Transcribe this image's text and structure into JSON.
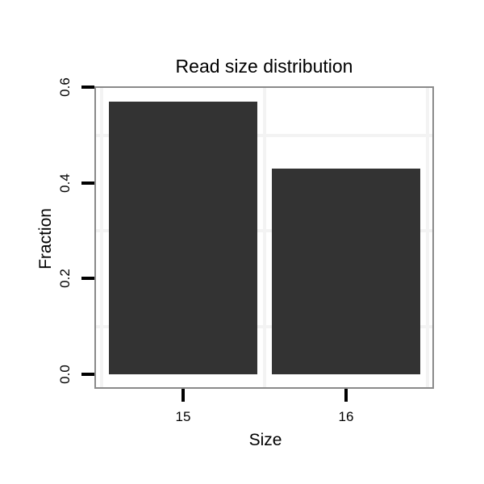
{
  "chart_data": {
    "type": "bar",
    "title": "Read size distribution",
    "xlabel": "Size",
    "ylabel": "Fraction",
    "categories": [
      "15",
      "16"
    ],
    "values": [
      0.57,
      0.43
    ],
    "ylim": [
      0,
      0.6
    ],
    "y_ticks": [
      0,
      0.2,
      0.4,
      0.6
    ],
    "y_tick_labels": [
      "0.0",
      "0.2",
      "0.4",
      "0.6"
    ],
    "y_minor_gridlines": [
      0.1,
      0.3,
      0.5
    ],
    "grid": "minor-only, very faint",
    "legend": "none",
    "colors": {
      "bar_fill": "#333333",
      "panel_border": "#8a8a8a",
      "tick": "#000000",
      "gridline": "#f3f3f3",
      "background": "#ffffff",
      "text": "#000000"
    }
  }
}
